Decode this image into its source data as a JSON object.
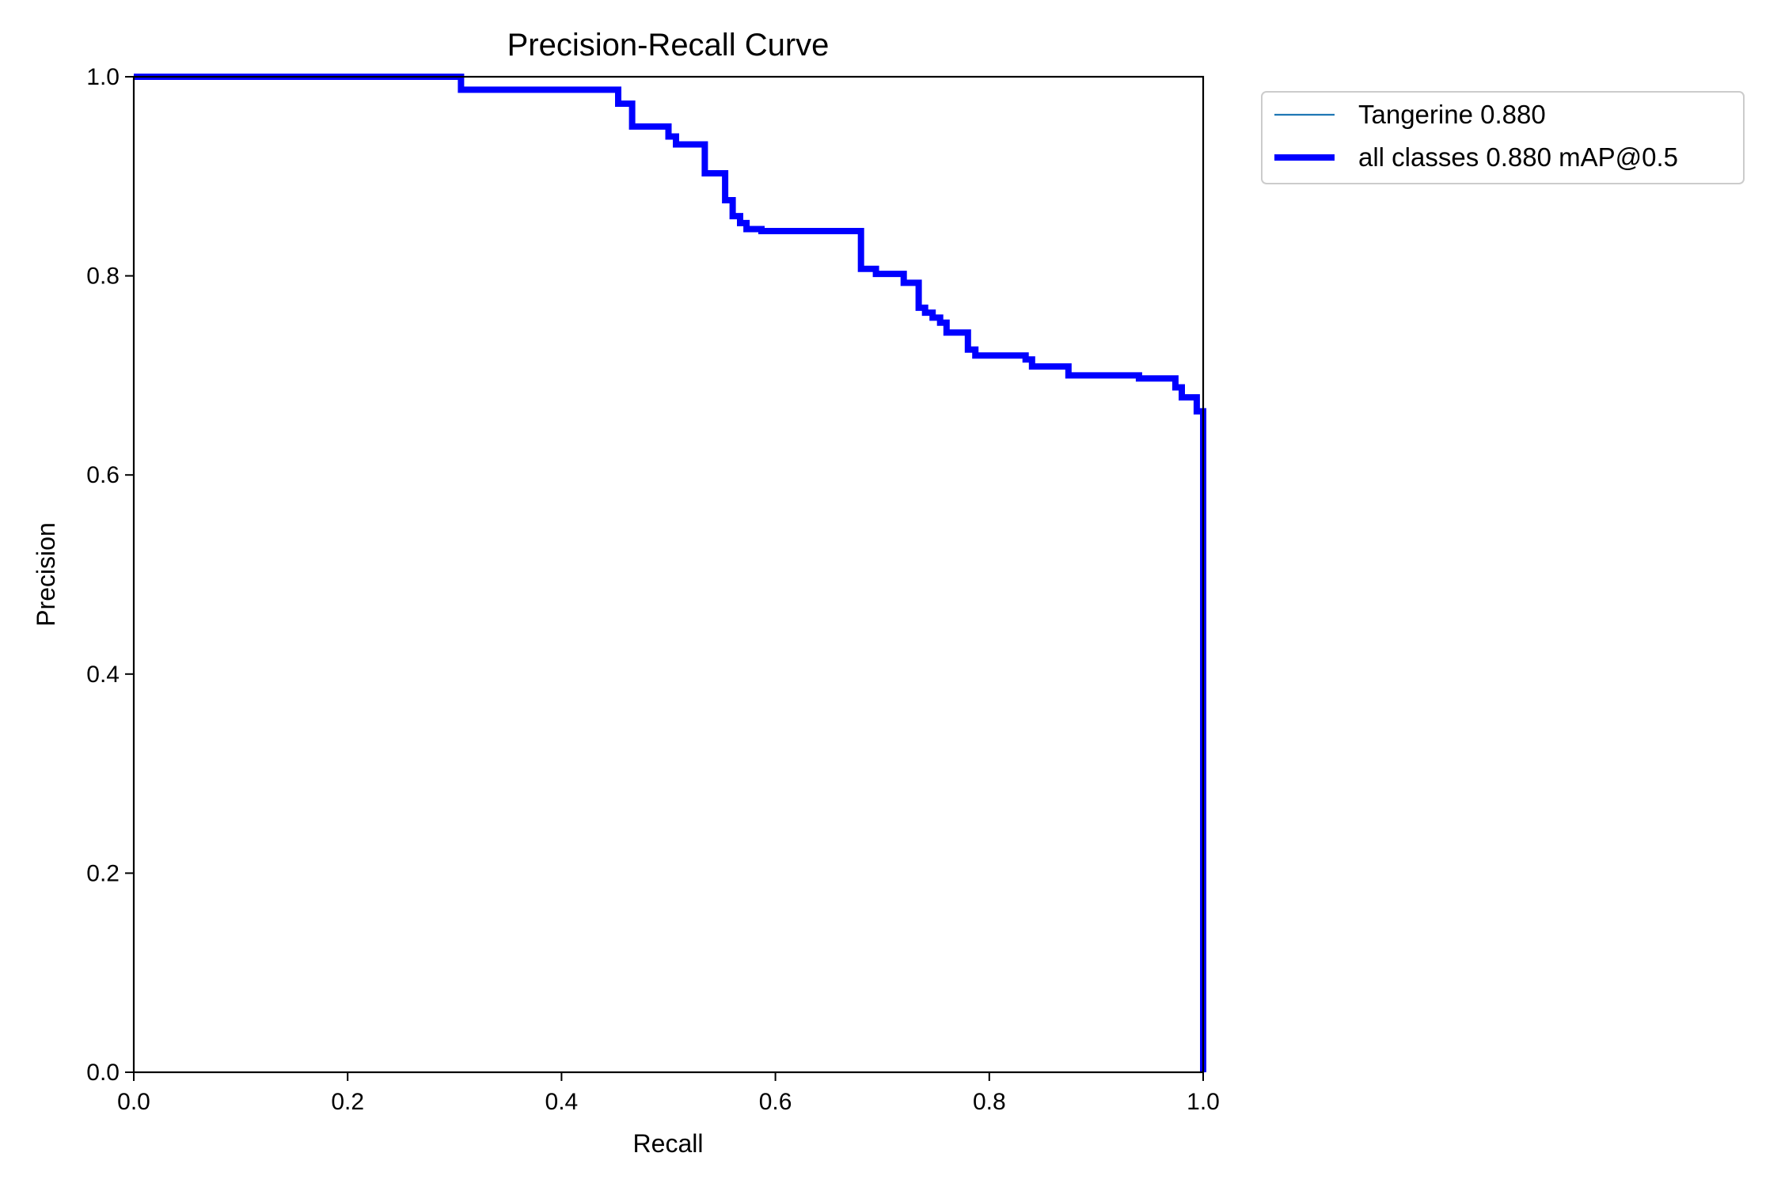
{
  "chart_data": {
    "type": "line",
    "title": "Precision-Recall Curve",
    "xlabel": "Recall",
    "ylabel": "Precision",
    "xlim": [
      0,
      1
    ],
    "ylim": [
      0,
      1
    ],
    "x_ticks": [
      "0.0",
      "0.2",
      "0.4",
      "0.6",
      "0.8",
      "1.0"
    ],
    "y_ticks": [
      "0.0",
      "0.2",
      "0.4",
      "0.6",
      "0.8",
      "1.0"
    ],
    "grid": false,
    "legend_position": "outside-top-right",
    "series": [
      {
        "name": "Tangerine 0.880",
        "color": "#1f77b4",
        "style": "thin",
        "points": [
          [
            0.0,
            1.0
          ],
          [
            0.306,
            1.0
          ],
          [
            0.306,
            0.987
          ],
          [
            0.453,
            0.987
          ],
          [
            0.453,
            0.973
          ],
          [
            0.466,
            0.973
          ],
          [
            0.466,
            0.95
          ],
          [
            0.5,
            0.95
          ],
          [
            0.5,
            0.94
          ],
          [
            0.507,
            0.94
          ],
          [
            0.507,
            0.932
          ],
          [
            0.534,
            0.932
          ],
          [
            0.534,
            0.903
          ],
          [
            0.553,
            0.903
          ],
          [
            0.553,
            0.876
          ],
          [
            0.56,
            0.876
          ],
          [
            0.56,
            0.86
          ],
          [
            0.567,
            0.86
          ],
          [
            0.567,
            0.853
          ],
          [
            0.573,
            0.853
          ],
          [
            0.573,
            0.847
          ],
          [
            0.587,
            0.847
          ],
          [
            0.587,
            0.845
          ],
          [
            0.68,
            0.845
          ],
          [
            0.68,
            0.807
          ],
          [
            0.694,
            0.807
          ],
          [
            0.694,
            0.802
          ],
          [
            0.72,
            0.802
          ],
          [
            0.72,
            0.793
          ],
          [
            0.734,
            0.793
          ],
          [
            0.734,
            0.768
          ],
          [
            0.74,
            0.768
          ],
          [
            0.74,
            0.763
          ],
          [
            0.747,
            0.763
          ],
          [
            0.747,
            0.758
          ],
          [
            0.754,
            0.758
          ],
          [
            0.754,
            0.753
          ],
          [
            0.76,
            0.753
          ],
          [
            0.76,
            0.743
          ],
          [
            0.78,
            0.743
          ],
          [
            0.78,
            0.726
          ],
          [
            0.787,
            0.726
          ],
          [
            0.787,
            0.72
          ],
          [
            0.834,
            0.72
          ],
          [
            0.834,
            0.716
          ],
          [
            0.84,
            0.716
          ],
          [
            0.84,
            0.709
          ],
          [
            0.874,
            0.709
          ],
          [
            0.874,
            0.7
          ],
          [
            0.94,
            0.7
          ],
          [
            0.94,
            0.697
          ],
          [
            0.974,
            0.697
          ],
          [
            0.974,
            0.688
          ],
          [
            0.98,
            0.688
          ],
          [
            0.98,
            0.678
          ],
          [
            0.994,
            0.678
          ],
          [
            0.994,
            0.664
          ],
          [
            1.0,
            0.664
          ],
          [
            1.0,
            0.0
          ]
        ]
      },
      {
        "name": "all classes 0.880 mAP@0.5",
        "color": "#0000ff",
        "style": "thick",
        "points": [
          [
            0.0,
            1.0
          ],
          [
            0.306,
            1.0
          ],
          [
            0.306,
            0.987
          ],
          [
            0.453,
            0.987
          ],
          [
            0.453,
            0.973
          ],
          [
            0.466,
            0.973
          ],
          [
            0.466,
            0.95
          ],
          [
            0.5,
            0.95
          ],
          [
            0.5,
            0.94
          ],
          [
            0.507,
            0.94
          ],
          [
            0.507,
            0.932
          ],
          [
            0.534,
            0.932
          ],
          [
            0.534,
            0.903
          ],
          [
            0.553,
            0.903
          ],
          [
            0.553,
            0.876
          ],
          [
            0.56,
            0.876
          ],
          [
            0.56,
            0.86
          ],
          [
            0.567,
            0.86
          ],
          [
            0.567,
            0.853
          ],
          [
            0.573,
            0.853
          ],
          [
            0.573,
            0.847
          ],
          [
            0.587,
            0.847
          ],
          [
            0.587,
            0.845
          ],
          [
            0.68,
            0.845
          ],
          [
            0.68,
            0.807
          ],
          [
            0.694,
            0.807
          ],
          [
            0.694,
            0.802
          ],
          [
            0.72,
            0.802
          ],
          [
            0.72,
            0.793
          ],
          [
            0.734,
            0.793
          ],
          [
            0.734,
            0.768
          ],
          [
            0.74,
            0.768
          ],
          [
            0.74,
            0.763
          ],
          [
            0.747,
            0.763
          ],
          [
            0.747,
            0.758
          ],
          [
            0.754,
            0.758
          ],
          [
            0.754,
            0.753
          ],
          [
            0.76,
            0.753
          ],
          [
            0.76,
            0.743
          ],
          [
            0.78,
            0.743
          ],
          [
            0.78,
            0.726
          ],
          [
            0.787,
            0.726
          ],
          [
            0.787,
            0.72
          ],
          [
            0.834,
            0.72
          ],
          [
            0.834,
            0.716
          ],
          [
            0.84,
            0.716
          ],
          [
            0.84,
            0.709
          ],
          [
            0.874,
            0.709
          ],
          [
            0.874,
            0.7
          ],
          [
            0.94,
            0.7
          ],
          [
            0.94,
            0.697
          ],
          [
            0.974,
            0.697
          ],
          [
            0.974,
            0.688
          ],
          [
            0.98,
            0.688
          ],
          [
            0.98,
            0.678
          ],
          [
            0.994,
            0.678
          ],
          [
            0.994,
            0.664
          ],
          [
            1.0,
            0.664
          ],
          [
            1.0,
            0.0
          ]
        ]
      }
    ]
  }
}
